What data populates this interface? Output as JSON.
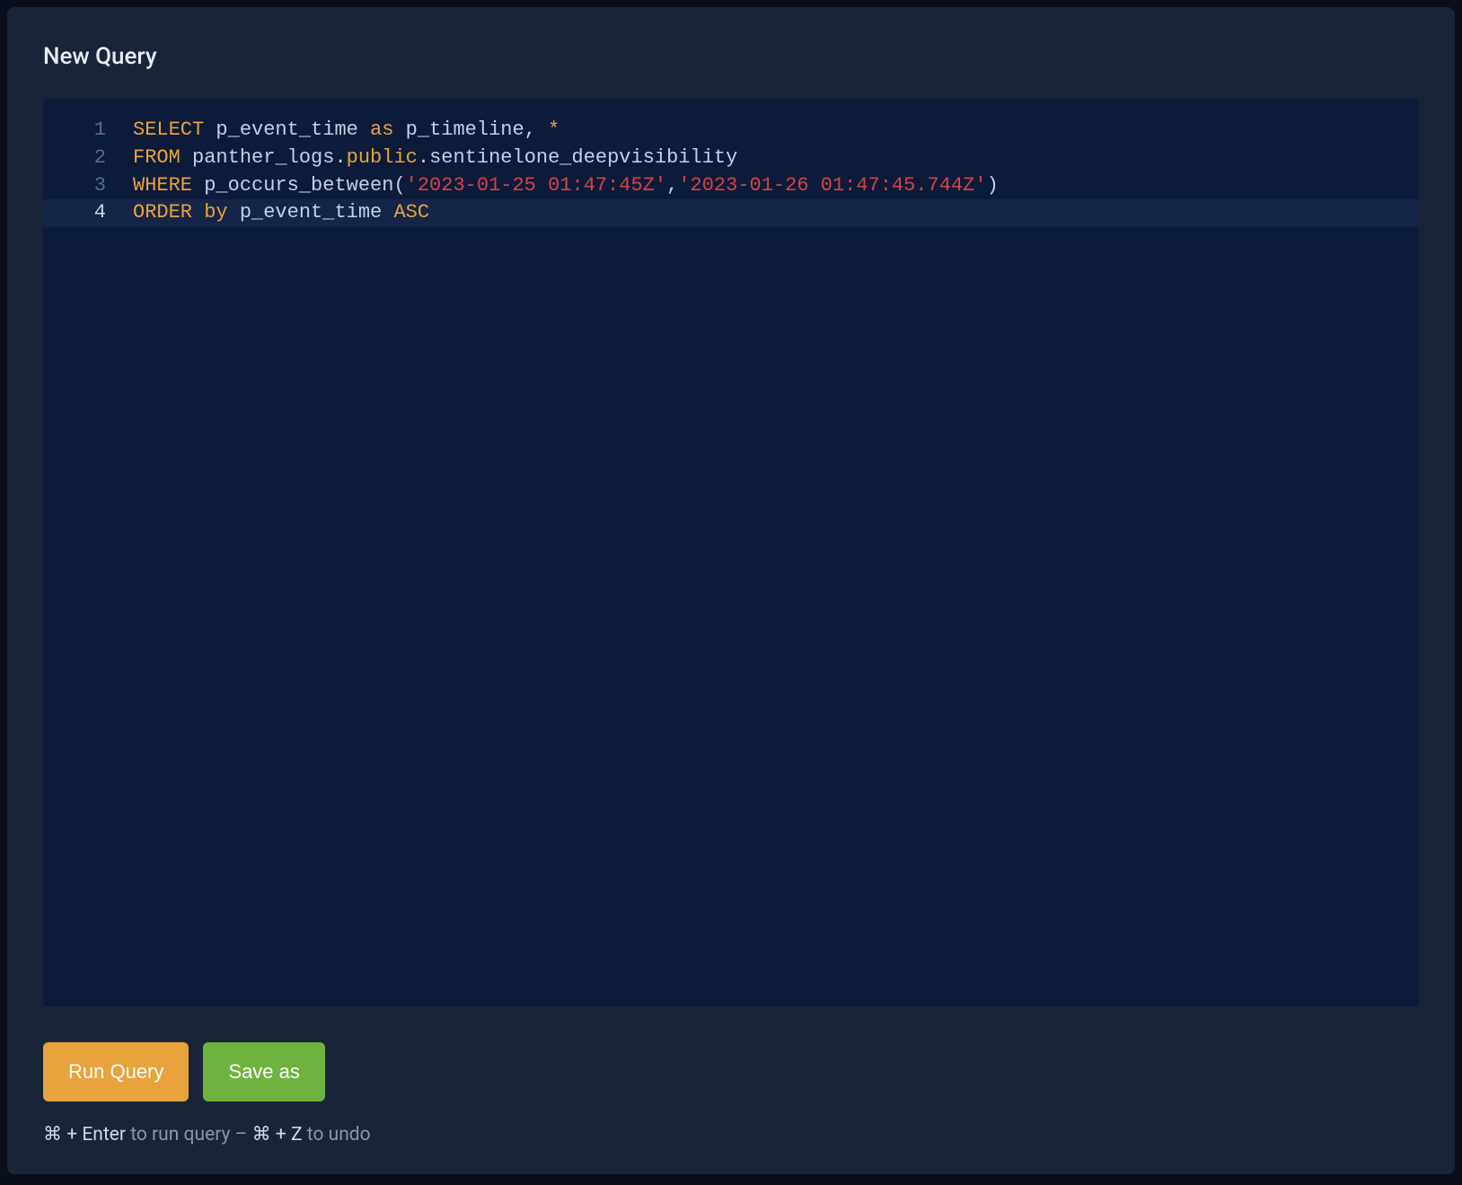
{
  "title": "New Query",
  "editor": {
    "background_color": "#0d1b3a",
    "container_color": "#1a2438",
    "font_family": "monospace",
    "font_size": 22,
    "colors": {
      "keyword": "#e8a33d",
      "string": "#d14545",
      "attribute": "#e8a33d",
      "text": "#c5d0e6",
      "line_number": "#5a6b8c",
      "line_number_active": "#d0d8e8"
    },
    "active_line": 4,
    "lines": [
      {
        "number": "1",
        "tokens": [
          {
            "type": "kw",
            "text": "SELECT"
          },
          {
            "type": "text",
            "text": " p_event_time "
          },
          {
            "type": "kw",
            "text": "as"
          },
          {
            "type": "text",
            "text": " p_timeline, "
          },
          {
            "type": "kw",
            "text": "*"
          }
        ]
      },
      {
        "number": "2",
        "tokens": [
          {
            "type": "kw",
            "text": "FROM"
          },
          {
            "type": "text",
            "text": " panther_logs."
          },
          {
            "type": "attr",
            "text": "public"
          },
          {
            "type": "text",
            "text": ".sentinelone_deepvisibility"
          }
        ]
      },
      {
        "number": "3",
        "tokens": [
          {
            "type": "kw",
            "text": "WHERE"
          },
          {
            "type": "text",
            "text": " p_occurs_between("
          },
          {
            "type": "str",
            "text": "'2023-01-25 01:47:45Z'"
          },
          {
            "type": "text",
            "text": ","
          },
          {
            "type": "str",
            "text": "'2023-01-26 01:47:45.744Z'"
          },
          {
            "type": "text",
            "text": ")"
          }
        ]
      },
      {
        "number": "4",
        "tokens": [
          {
            "type": "kw",
            "text": "ORDER"
          },
          {
            "type": "text",
            "text": " "
          },
          {
            "type": "kw",
            "text": "by"
          },
          {
            "type": "text",
            "text": " p_event_time "
          },
          {
            "type": "kw",
            "text": "ASC"
          }
        ]
      }
    ]
  },
  "buttons": {
    "run_query": "Run Query",
    "save_as": "Save as",
    "primary_color": "#e8a33d",
    "secondary_color": "#6eb33f"
  },
  "hint": {
    "key1": "⌘ + Enter",
    "text1": " to run query – ",
    "key2": "⌘ + Z",
    "text2": " to undo"
  }
}
